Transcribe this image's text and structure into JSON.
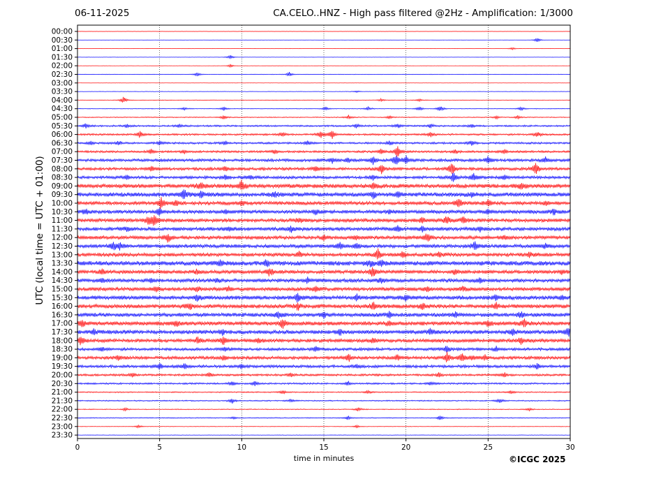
{
  "header": {
    "date": "06-11-2025",
    "title": "CA.CELO..HNZ - High pass filtered @2Hz - Amplification: 1/3000"
  },
  "footer": {
    "credit": "©ICGC 2025"
  },
  "chart_data": {
    "type": "line",
    "title": "CA.CELO..HNZ - High pass filtered @2Hz - Amplification: 1/3000",
    "xlabel": "time in minutes",
    "ylabel": "UTC (local time = UTC + 01:00)",
    "xlim": [
      0,
      30
    ],
    "x_ticks": [
      0,
      5,
      10,
      15,
      20,
      25,
      30
    ],
    "grid": "vertical dotted lines at every 5 minutes",
    "trace_colors": [
      "#ff0000",
      "#0000ff"
    ],
    "rows": [
      {
        "label": "00:00",
        "color": "#ff0000",
        "noise": 0.2,
        "events": []
      },
      {
        "label": "00:30",
        "color": "#0000ff",
        "noise": 0.2,
        "events": [
          [
            28.0,
            3.5
          ]
        ]
      },
      {
        "label": "01:00",
        "color": "#ff0000",
        "noise": 0.2,
        "events": [
          [
            26.5,
            2.0
          ]
        ]
      },
      {
        "label": "01:30",
        "color": "#0000ff",
        "noise": 0.2,
        "events": [
          [
            9.3,
            3.5
          ]
        ]
      },
      {
        "label": "02:00",
        "color": "#ff0000",
        "noise": 0.2,
        "events": [
          [
            9.3,
            2.5
          ]
        ]
      },
      {
        "label": "02:30",
        "color": "#0000ff",
        "noise": 0.3,
        "events": [
          [
            7.3,
            3.5
          ],
          [
            12.9,
            3.5
          ]
        ]
      },
      {
        "label": "03:00",
        "color": "#ff0000",
        "noise": 0.2,
        "events": []
      },
      {
        "label": "03:30",
        "color": "#0000ff",
        "noise": 0.3,
        "events": [
          [
            17.0,
            1.5
          ]
        ]
      },
      {
        "label": "04:00",
        "color": "#ff0000",
        "noise": 0.4,
        "events": [
          [
            2.8,
            5.0
          ],
          [
            18.5,
            2.5
          ],
          [
            20.8,
            2.0
          ]
        ]
      },
      {
        "label": "04:30",
        "color": "#0000ff",
        "noise": 0.5,
        "events": [
          [
            6.5,
            2.5
          ],
          [
            8.9,
            3.0
          ],
          [
            15.1,
            3.0
          ],
          [
            17.7,
            3.0
          ],
          [
            20.8,
            3.5
          ],
          [
            22.1,
            4.5
          ],
          [
            27.0,
            3.0
          ]
        ]
      },
      {
        "label": "05:00",
        "color": "#ff0000",
        "noise": 0.6,
        "events": [
          [
            8.9,
            3.0
          ],
          [
            16.5,
            3.0
          ],
          [
            19.0,
            2.5
          ],
          [
            25.5,
            2.5
          ],
          [
            26.8,
            2.5
          ]
        ]
      },
      {
        "label": "05:30",
        "color": "#0000ff",
        "noise": 1.2,
        "events": [
          [
            0.5,
            3.5
          ],
          [
            3.0,
            2.5
          ],
          [
            6.2,
            3.0
          ],
          [
            17.0,
            3.0
          ],
          [
            19.5,
            3.0
          ],
          [
            21.5,
            3.0
          ],
          [
            24.0,
            2.5
          ]
        ]
      },
      {
        "label": "06:00",
        "color": "#ff0000",
        "noise": 1.3,
        "events": [
          [
            3.8,
            5.0
          ],
          [
            12.5,
            3.5
          ],
          [
            14.8,
            6.0
          ],
          [
            15.5,
            7.0
          ],
          [
            21.5,
            3.5
          ],
          [
            28.0,
            4.5
          ]
        ]
      },
      {
        "label": "06:30",
        "color": "#0000ff",
        "noise": 1.4,
        "events": [
          [
            0.8,
            2.5
          ],
          [
            2.5,
            3.5
          ],
          [
            5.0,
            3.0
          ],
          [
            9.0,
            3.0
          ],
          [
            14.0,
            3.0
          ],
          [
            19.0,
            3.5
          ],
          [
            24.0,
            4.0
          ]
        ]
      },
      {
        "label": "07:00",
        "color": "#ff0000",
        "noise": 1.5,
        "events": [
          [
            4.5,
            3.5
          ],
          [
            6.5,
            3.0
          ],
          [
            12.0,
            3.5
          ],
          [
            18.5,
            5.0
          ],
          [
            19.5,
            9.0
          ],
          [
            23.0,
            3.0
          ],
          [
            26.0,
            3.0
          ]
        ]
      },
      {
        "label": "07:30",
        "color": "#0000ff",
        "noise": 2.0,
        "events": [
          [
            15.5,
            4.0
          ],
          [
            16.5,
            3.5
          ],
          [
            18.0,
            6.0
          ],
          [
            19.4,
            9.0
          ],
          [
            20.0,
            6.5
          ],
          [
            25.0,
            5.0
          ],
          [
            28.5,
            4.0
          ]
        ]
      },
      {
        "label": "08:00",
        "color": "#ff0000",
        "noise": 2.0,
        "events": [
          [
            4.5,
            3.5
          ],
          [
            9.0,
            4.0
          ],
          [
            14.5,
            3.5
          ],
          [
            18.5,
            7.0
          ],
          [
            22.8,
            10.0
          ],
          [
            27.9,
            9.0
          ]
        ]
      },
      {
        "label": "08:30",
        "color": "#0000ff",
        "noise": 2.0,
        "events": [
          [
            3.0,
            3.5
          ],
          [
            9.0,
            3.5
          ],
          [
            10.5,
            3.0
          ],
          [
            18.0,
            4.0
          ],
          [
            22.9,
            9.0
          ],
          [
            24.1,
            6.0
          ],
          [
            26.0,
            3.5
          ]
        ]
      },
      {
        "label": "09:00",
        "color": "#ff0000",
        "noise": 3.0,
        "events": [
          [
            7.5,
            5.0
          ],
          [
            10.0,
            8.0
          ],
          [
            18.0,
            4.0
          ],
          [
            27.0,
            5.0
          ]
        ]
      },
      {
        "label": "09:30",
        "color": "#0000ff",
        "noise": 3.0,
        "events": [
          [
            6.5,
            9.0
          ],
          [
            7.5,
            4.5
          ],
          [
            12.0,
            4.0
          ],
          [
            18.0,
            4.5
          ],
          [
            19.5,
            4.0
          ],
          [
            24.0,
            3.5
          ]
        ]
      },
      {
        "label": "10:00",
        "color": "#ff0000",
        "noise": 2.5,
        "events": [
          [
            5.1,
            8.0
          ],
          [
            6.0,
            4.0
          ],
          [
            10.0,
            4.0
          ],
          [
            23.2,
            7.0
          ],
          [
            25.0,
            5.0
          ],
          [
            28.5,
            3.5
          ]
        ]
      },
      {
        "label": "10:30",
        "color": "#0000ff",
        "noise": 2.5,
        "events": [
          [
            0.5,
            4.0
          ],
          [
            5.0,
            6.0
          ],
          [
            9.0,
            3.5
          ],
          [
            14.5,
            3.5
          ],
          [
            19.0,
            3.5
          ],
          [
            25.0,
            3.5
          ],
          [
            29.0,
            4.0
          ]
        ]
      },
      {
        "label": "11:00",
        "color": "#ff0000",
        "noise": 2.5,
        "events": [
          [
            4.3,
            6.0
          ],
          [
            4.7,
            9.0
          ],
          [
            13.5,
            3.5
          ],
          [
            21.0,
            4.0
          ],
          [
            22.5,
            6.0
          ],
          [
            23.5,
            5.0
          ]
        ]
      },
      {
        "label": "11:30",
        "color": "#0000ff",
        "noise": 2.5,
        "events": [
          [
            3.0,
            3.5
          ],
          [
            9.2,
            3.5
          ],
          [
            13.0,
            4.0
          ],
          [
            19.5,
            4.0
          ],
          [
            21.0,
            4.0
          ],
          [
            24.5,
            3.5
          ]
        ]
      },
      {
        "label": "12:00",
        "color": "#ff0000",
        "noise": 2.5,
        "events": [
          [
            5.5,
            6.5
          ],
          [
            15.0,
            3.5
          ],
          [
            17.0,
            3.0
          ],
          [
            21.3,
            6.5
          ],
          [
            26.0,
            3.5
          ]
        ]
      },
      {
        "label": "12:30",
        "color": "#0000ff",
        "noise": 2.5,
        "events": [
          [
            2.2,
            6.0
          ],
          [
            2.6,
            5.0
          ],
          [
            16.0,
            5.0
          ],
          [
            17.0,
            4.0
          ],
          [
            24.2,
            7.0
          ],
          [
            28.5,
            3.5
          ]
        ]
      },
      {
        "label": "13:00",
        "color": "#ff0000",
        "noise": 2.5,
        "events": [
          [
            13.5,
            3.5
          ],
          [
            18.3,
            8.0
          ],
          [
            19.8,
            5.0
          ],
          [
            22.0,
            3.5
          ],
          [
            27.5,
            3.5
          ]
        ]
      },
      {
        "label": "13:30",
        "color": "#0000ff",
        "noise": 3.2,
        "events": [
          [
            8.7,
            4.5
          ],
          [
            11.5,
            4.5
          ],
          [
            17.8,
            5.0
          ],
          [
            18.5,
            4.0
          ]
        ]
      },
      {
        "label": "14:00",
        "color": "#ff0000",
        "noise": 2.5,
        "events": [
          [
            1.5,
            3.5
          ],
          [
            7.3,
            4.0
          ],
          [
            11.7,
            7.0
          ],
          [
            18.0,
            8.0
          ],
          [
            23.0,
            3.5
          ],
          [
            29.5,
            3.5
          ]
        ]
      },
      {
        "label": "14:30",
        "color": "#0000ff",
        "noise": 2.5,
        "events": [
          [
            1.5,
            3.0
          ],
          [
            4.5,
            3.0
          ],
          [
            8.5,
            3.0
          ],
          [
            14.0,
            3.5
          ],
          [
            18.5,
            3.5
          ],
          [
            24.5,
            3.5
          ]
        ]
      },
      {
        "label": "15:00",
        "color": "#ff0000",
        "noise": 2.5,
        "events": [
          [
            4.8,
            4.0
          ],
          [
            7.3,
            4.0
          ],
          [
            9.2,
            3.5
          ],
          [
            14.5,
            3.5
          ],
          [
            21.3,
            3.5
          ],
          [
            23.5,
            3.5
          ]
        ]
      },
      {
        "label": "15:30",
        "color": "#0000ff",
        "noise": 2.8,
        "events": [
          [
            7.3,
            4.5
          ],
          [
            13.4,
            6.0
          ],
          [
            17.0,
            4.0
          ],
          [
            20.0,
            4.0
          ],
          [
            25.5,
            4.0
          ],
          [
            29.5,
            4.0
          ]
        ]
      },
      {
        "label": "16:00",
        "color": "#ff0000",
        "noise": 2.8,
        "events": [
          [
            6.8,
            5.0
          ],
          [
            13.4,
            6.0
          ],
          [
            18.0,
            6.5
          ],
          [
            21.0,
            4.0
          ],
          [
            25.5,
            4.0
          ]
        ]
      },
      {
        "label": "16:30",
        "color": "#0000ff",
        "noise": 2.8,
        "events": [
          [
            12.2,
            6.0
          ],
          [
            15.0,
            4.0
          ],
          [
            19.0,
            4.0
          ],
          [
            23.0,
            4.0
          ],
          [
            27.0,
            4.0
          ]
        ]
      },
      {
        "label": "17:00",
        "color": "#ff0000",
        "noise": 2.8,
        "events": [
          [
            0.3,
            5.0
          ],
          [
            6.0,
            4.0
          ],
          [
            12.5,
            6.5
          ],
          [
            19.0,
            4.0
          ],
          [
            25.0,
            4.0
          ],
          [
            27.2,
            6.0
          ]
        ]
      },
      {
        "label": "17:30",
        "color": "#0000ff",
        "noise": 2.8,
        "events": [
          [
            1.0,
            4.0
          ],
          [
            8.8,
            4.0
          ],
          [
            16.0,
            4.0
          ],
          [
            21.5,
            4.0
          ],
          [
            26.5,
            4.0
          ],
          [
            29.9,
            8.0
          ]
        ]
      },
      {
        "label": "18:00",
        "color": "#ff0000",
        "noise": 2.5,
        "events": [
          [
            0.2,
            6.0
          ],
          [
            7.3,
            4.5
          ],
          [
            8.9,
            6.0
          ],
          [
            11.0,
            4.0
          ],
          [
            18.0,
            4.0
          ],
          [
            27.0,
            4.5
          ]
        ]
      },
      {
        "label": "18:30",
        "color": "#0000ff",
        "noise": 2.0,
        "events": [
          [
            1.5,
            3.0
          ],
          [
            9.0,
            3.0
          ],
          [
            14.5,
            3.5
          ],
          [
            22.5,
            5.0
          ],
          [
            25.5,
            3.5
          ]
        ]
      },
      {
        "label": "19:00",
        "color": "#ff0000",
        "noise": 2.2,
        "events": [
          [
            2.5,
            4.0
          ],
          [
            8.9,
            4.0
          ],
          [
            16.5,
            6.5
          ],
          [
            19.5,
            5.0
          ],
          [
            22.5,
            8.0
          ],
          [
            23.4,
            6.5
          ],
          [
            24.0,
            4.0
          ],
          [
            24.8,
            4.0
          ]
        ]
      },
      {
        "label": "19:30",
        "color": "#0000ff",
        "noise": 2.0,
        "events": [
          [
            5.0,
            4.0
          ],
          [
            6.5,
            4.5
          ],
          [
            10.0,
            3.5
          ],
          [
            17.0,
            3.5
          ],
          [
            28.0,
            3.5
          ]
        ]
      },
      {
        "label": "20:00",
        "color": "#ff0000",
        "noise": 1.5,
        "events": [
          [
            3.3,
            3.0
          ],
          [
            8.0,
            3.0
          ],
          [
            13.0,
            3.0
          ],
          [
            22.0,
            3.0
          ],
          [
            26.0,
            3.0
          ]
        ]
      },
      {
        "label": "20:30",
        "color": "#0000ff",
        "noise": 1.2,
        "events": [
          [
            9.4,
            3.5
          ],
          [
            10.8,
            3.5
          ],
          [
            16.5,
            3.0
          ],
          [
            21.5,
            3.0
          ]
        ]
      },
      {
        "label": "21:00",
        "color": "#ff0000",
        "noise": 0.8,
        "events": [
          [
            12.5,
            3.0
          ],
          [
            17.7,
            2.5
          ],
          [
            26.4,
            2.5
          ]
        ]
      },
      {
        "label": "21:30",
        "color": "#0000ff",
        "noise": 0.8,
        "events": [
          [
            9.4,
            4.0
          ],
          [
            13.0,
            2.5
          ],
          [
            25.7,
            3.5
          ]
        ]
      },
      {
        "label": "22:00",
        "color": "#ff0000",
        "noise": 0.6,
        "events": [
          [
            2.9,
            2.5
          ],
          [
            17.1,
            3.0
          ],
          [
            27.5,
            2.0
          ]
        ]
      },
      {
        "label": "22:30",
        "color": "#0000ff",
        "noise": 0.6,
        "events": [
          [
            9.5,
            2.0
          ],
          [
            16.5,
            3.0
          ],
          [
            22.1,
            4.0
          ]
        ]
      },
      {
        "label": "23:00",
        "color": "#ff0000",
        "noise": 0.4,
        "events": [
          [
            3.7,
            2.5
          ],
          [
            17.0,
            2.0
          ]
        ]
      },
      {
        "label": "23:30",
        "color": "#0000ff",
        "noise": 0.3,
        "events": []
      }
    ]
  }
}
